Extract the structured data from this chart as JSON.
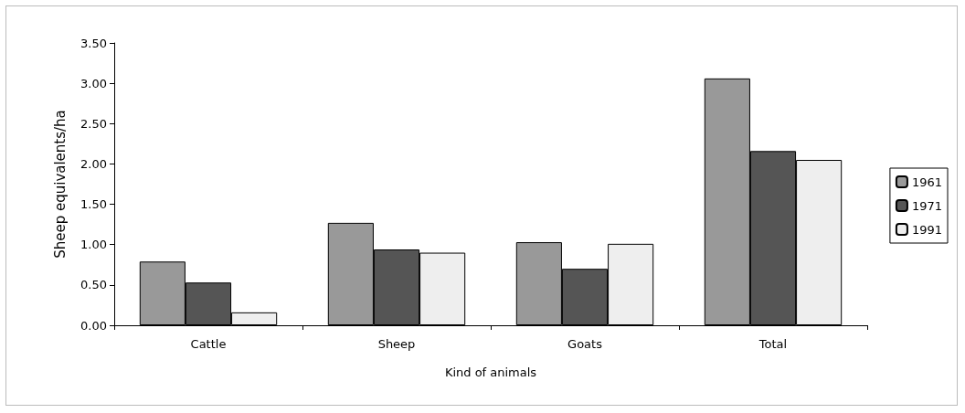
{
  "chart_data": {
    "type": "bar",
    "xlabel": "Kind of animals",
    "ylabel": "Sheep equivalents/ha",
    "categories": [
      "Cattle",
      "Sheep",
      "Goats",
      "Total"
    ],
    "series": [
      {
        "name": "1961",
        "color": "#999999",
        "values": [
          0.79,
          1.27,
          1.03,
          3.06
        ]
      },
      {
        "name": "1971",
        "color": "#555555",
        "values": [
          0.53,
          0.94,
          0.7,
          2.16
        ]
      },
      {
        "name": "1991",
        "color": "#eeeeee",
        "values": [
          0.16,
          0.9,
          1.01,
          2.05
        ]
      }
    ],
    "ylim": [
      0,
      3.5
    ],
    "yticks": [
      {
        "value": 0,
        "label": "0.00"
      },
      {
        "value": 0.5,
        "label": "0.50"
      },
      {
        "value": 1,
        "label": "1.00"
      },
      {
        "value": 1.5,
        "label": "1.50"
      },
      {
        "value": 2,
        "label": "2.00"
      },
      {
        "value": 2.5,
        "label": "2.50"
      },
      {
        "value": 3,
        "label": "3.00"
      },
      {
        "value": 3.5,
        "label": "3.50"
      }
    ],
    "grid": false,
    "legend": "right"
  }
}
